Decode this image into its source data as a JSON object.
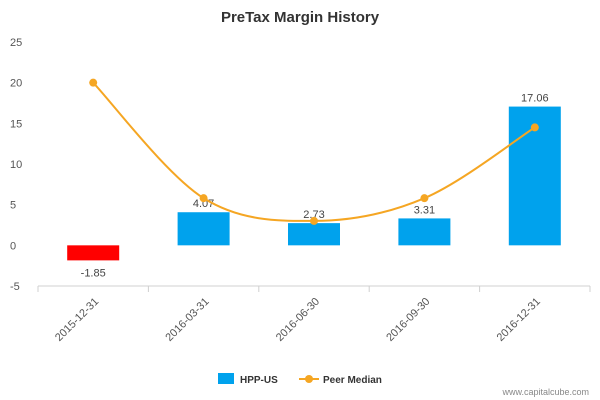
{
  "chart_data": {
    "type": "bar",
    "title": "PreTax Margin History",
    "xlabel": "",
    "ylabel": "",
    "categories": [
      "2015-12-31",
      "2016-03-31",
      "2016-06-30",
      "2016-09-30",
      "2016-12-31"
    ],
    "ylim": [
      -5,
      25
    ],
    "yticks": [
      -5,
      0,
      5,
      10,
      15,
      20,
      25
    ],
    "grid": false,
    "legend_position": "bottom-center",
    "series": [
      {
        "name": "HPP-US",
        "type": "bar",
        "values": [
          -1.85,
          4.07,
          2.73,
          3.31,
          17.06
        ],
        "labels": [
          "-1.85",
          "4.07",
          "2.73",
          "3.31",
          "17.06"
        ],
        "color": "#00a2ed",
        "negative_color": "#ff0000"
      },
      {
        "name": "Peer Median",
        "type": "line",
        "values": [
          20.0,
          5.8,
          3.0,
          5.8,
          14.5
        ],
        "color": "#f5a623"
      }
    ]
  },
  "watermark": "www.capitalcube.com"
}
